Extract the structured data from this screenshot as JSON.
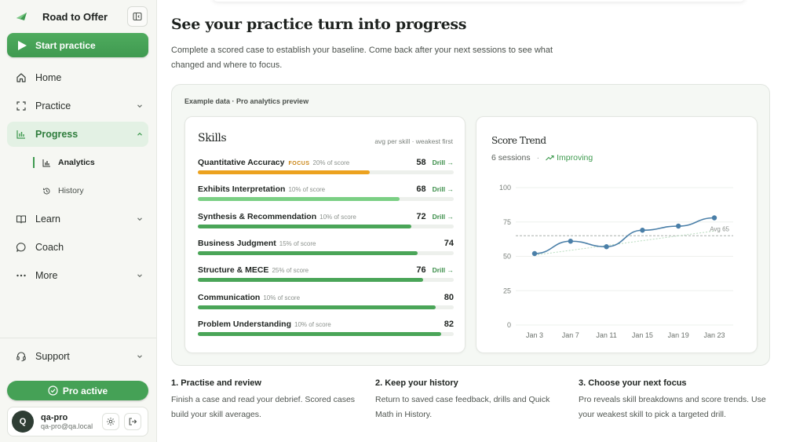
{
  "sidebar": {
    "brand": "Road to Offer",
    "start_label": "Start practice",
    "nav": [
      {
        "label": "Home",
        "icon": "home-icon"
      },
      {
        "label": "Practice",
        "icon": "practice-icon"
      },
      {
        "label": "Progress",
        "icon": "chart-icon"
      },
      {
        "label": "Learn",
        "icon": "book-icon"
      },
      {
        "label": "Coach",
        "icon": "chat-icon"
      },
      {
        "label": "More",
        "icon": "dots-icon"
      }
    ],
    "sub": [
      {
        "label": "Analytics"
      },
      {
        "label": "History"
      }
    ],
    "support_label": "Support",
    "pro_label": "Pro active",
    "user": {
      "initial": "Q",
      "name": "qa-pro",
      "email": "qa-pro@qa.local"
    }
  },
  "main": {
    "title": "See your practice turn into progress",
    "description": "Complete a scored case to establish your baseline. Come back after your next sessions to see what changed and where to focus.",
    "preview_label": "Example data · Pro analytics preview",
    "skills": {
      "title": "Skills",
      "note": "avg per skill · weakest first",
      "focus_tag": "FOCUS",
      "drill_label": "Drill →",
      "items": [
        {
          "name": "Quantitative Accuracy",
          "pct": "20% of score",
          "score": 58,
          "focus": true,
          "drill": true,
          "color": "#eca21f"
        },
        {
          "name": "Exhibits Interpretation",
          "pct": "10% of score",
          "score": 68,
          "focus": false,
          "drill": true,
          "color": "#7bcf84"
        },
        {
          "name": "Synthesis & Recommendation",
          "pct": "10% of score",
          "score": 72,
          "focus": false,
          "drill": true,
          "color": "#4aa558"
        },
        {
          "name": "Business Judgment",
          "pct": "15% of score",
          "score": 74,
          "focus": false,
          "drill": false,
          "color": "#4aa558"
        },
        {
          "name": "Structure & MECE",
          "pct": "25% of score",
          "score": 76,
          "focus": false,
          "drill": true,
          "color": "#4aa558"
        },
        {
          "name": "Communication",
          "pct": "10% of score",
          "score": 80,
          "focus": false,
          "drill": false,
          "color": "#4aa558"
        },
        {
          "name": "Problem Understanding",
          "pct": "10% of score",
          "score": 82,
          "focus": false,
          "drill": false,
          "color": "#4aa558"
        }
      ]
    },
    "trend": {
      "title": "Score Trend",
      "sessions": "6 sessions",
      "separator": "·",
      "status": "Improving"
    },
    "steps": [
      {
        "title": "1. Practise and review",
        "text": "Finish a case and read your debrief. Scored cases build your skill averages."
      },
      {
        "title": "2. Keep your history",
        "text": "Return to saved case feedback, drills and Quick Math in History."
      },
      {
        "title": "3. Choose your next focus",
        "text": "Pro reveals skill breakdowns and score trends. Use your weakest skill to pick a targeted drill."
      }
    ]
  },
  "chart_data": {
    "type": "line",
    "x": [
      "Jan 3",
      "Jan 7",
      "Jan 11",
      "Jan 15",
      "Jan 19",
      "Jan 23"
    ],
    "values": [
      52,
      61,
      57,
      69,
      72,
      78
    ],
    "ylim": [
      0,
      100
    ],
    "yticks": [
      0,
      25,
      50,
      75,
      100
    ],
    "average": 65,
    "average_label": "Avg 65",
    "grid": true,
    "line_color": "#4a7fa8"
  }
}
